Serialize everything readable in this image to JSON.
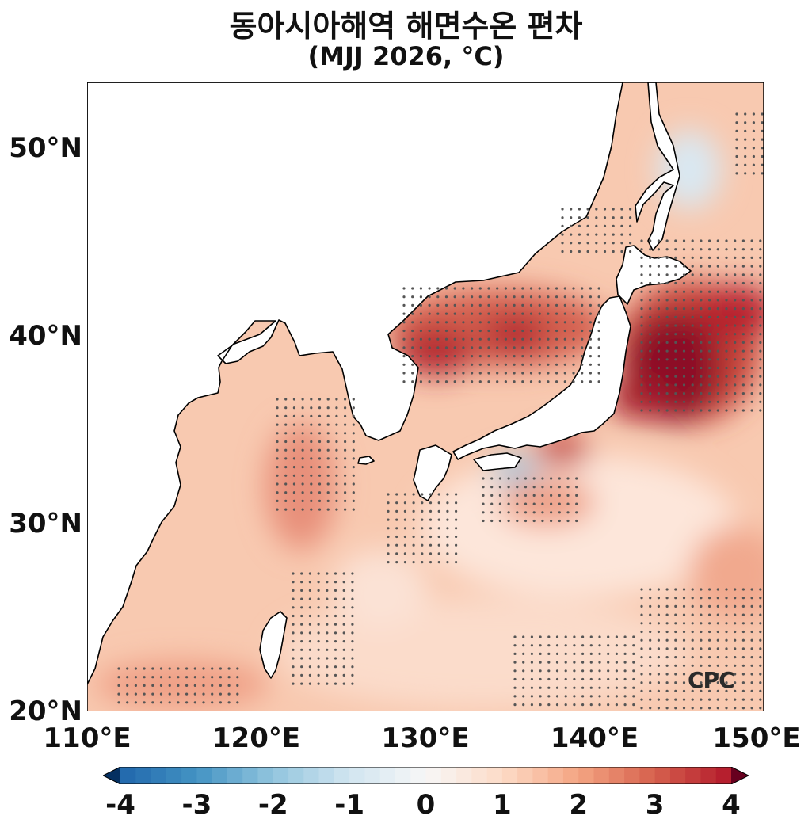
{
  "title": "동아시아해역 해면수온 편차",
  "subtitle": "(MJJ 2026, °C)",
  "logo_text": "CPC",
  "map": {
    "lon_range": [
      110,
      150
    ],
    "lat_range": [
      20,
      53.5
    ],
    "y_ticks": [
      {
        "lat": 50,
        "label": "50°N"
      },
      {
        "lat": 40,
        "label": "40°N"
      },
      {
        "lat": 30,
        "label": "30°N"
      },
      {
        "lat": 20,
        "label": "20°N"
      }
    ],
    "x_ticks": [
      {
        "lon": 110,
        "label": "110°E"
      },
      {
        "lon": 120,
        "label": "120°E"
      },
      {
        "lon": 130,
        "label": "130°E"
      },
      {
        "lon": 140,
        "label": "140°E"
      },
      {
        "lon": 150,
        "label": "150°E"
      }
    ]
  },
  "colorbar": {
    "min": -4,
    "max": 4,
    "ticks": [
      "-4",
      "-3",
      "-2",
      "-1",
      "0",
      "1",
      "2",
      "3",
      "4"
    ],
    "colors": [
      "#053061",
      "#2166ac",
      "#4393c3",
      "#92c5de",
      "#d1e5f0",
      "#f7f7f7",
      "#fddbc7",
      "#f4a582",
      "#d6604d",
      "#b2182b",
      "#67001f"
    ]
  }
}
